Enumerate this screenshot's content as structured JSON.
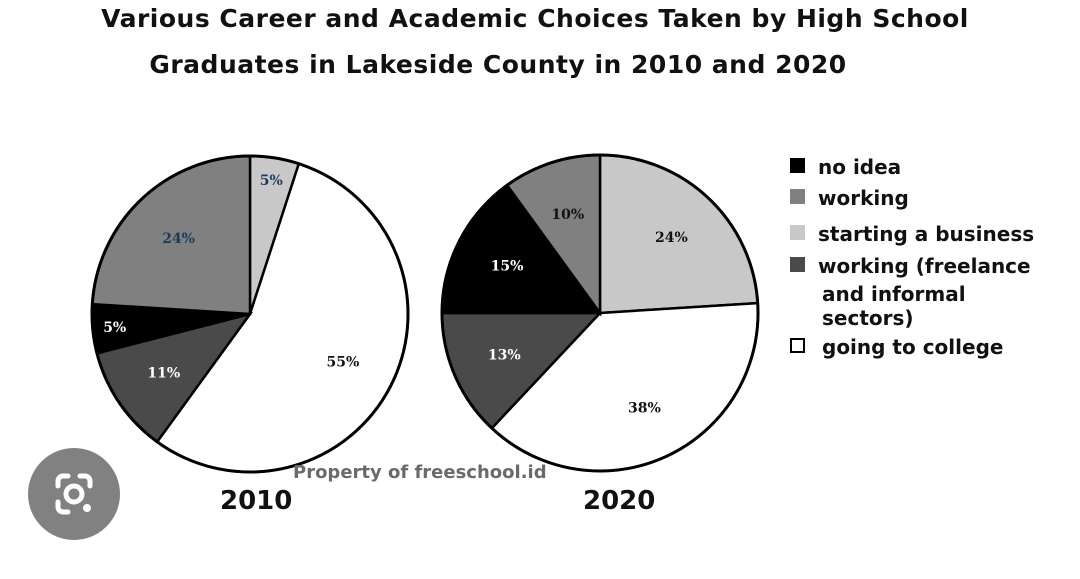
{
  "title": {
    "line1": "Various Career and Academic Choices Taken by High School",
    "line2": "Graduates in Lakeside County in 2010 and 2020"
  },
  "watermark": "Property of freeschool.id",
  "legend": [
    {
      "label": "no idea",
      "color": "#000000"
    },
    {
      "label": "working",
      "color": "#808080"
    },
    {
      "label": "starting a business",
      "color": "#c8c8c8"
    },
    {
      "label": "working (freelance",
      "color": "#4a4a4a"
    },
    {
      "label": "and informal",
      "color": null
    },
    {
      "label": "sectors)",
      "color": null
    },
    {
      "label": "going to college",
      "color": "#ffffff"
    }
  ],
  "lens_icon": "google-lens-icon",
  "chart_data": [
    {
      "type": "pie",
      "title": "2010",
      "categories": [
        "starting a business",
        "going to college",
        "working (freelance and informal sectors)",
        "no idea",
        "working"
      ],
      "values": [
        5,
        55,
        11,
        5,
        24
      ],
      "labels": [
        "5%",
        "55%",
        "11%",
        "5%",
        "24%"
      ],
      "colors": [
        "#c8c8c8",
        "#ffffff",
        "#4a4a4a",
        "#000000",
        "#808080"
      ],
      "label_colors": [
        "#1a3a5c",
        "#111111",
        "#ffffff",
        "#ffffff",
        "#1a3a5c"
      ]
    },
    {
      "type": "pie",
      "title": "2020",
      "categories": [
        "starting a business",
        "going to college",
        "working (freelance and informal sectors)",
        "no idea",
        "working"
      ],
      "values": [
        24,
        38,
        13,
        15,
        10
      ],
      "labels": [
        "24%",
        "38%",
        "13%",
        "15%",
        "10%"
      ],
      "colors": [
        "#c8c8c8",
        "#ffffff",
        "#4a4a4a",
        "#000000",
        "#808080"
      ],
      "label_colors": [
        "#111111",
        "#111111",
        "#ffffff",
        "#ffffff",
        "#111111"
      ]
    }
  ]
}
